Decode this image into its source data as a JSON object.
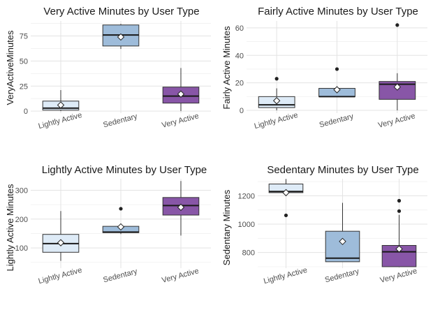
{
  "chart_data": [
    {
      "type": "box",
      "title": "Very Active Minutes  by User Type",
      "xlabel": "",
      "ylabel": "VeryActiveMinutes",
      "categories": [
        "Lightly Active",
        "Sedentary",
        "Very Active"
      ],
      "ylim": [
        -2,
        90
      ],
      "yticks": [
        0,
        25,
        50,
        75
      ],
      "boxes": [
        {
          "category": "Lightly Active",
          "whisker_low": 0,
          "q1": 1,
          "median": 3,
          "q3": 10,
          "whisker_high": 21,
          "mean": 6,
          "outliers": []
        },
        {
          "category": "Sedentary",
          "whisker_low": 62,
          "q1": 65,
          "median": 76,
          "q3": 86,
          "whisker_high": 87,
          "mean": 74,
          "outliers": []
        },
        {
          "category": "Very Active",
          "whisker_low": 0,
          "q1": 8,
          "median": 15,
          "q3": 24,
          "whisker_high": 43,
          "mean": 17,
          "outliers": []
        }
      ],
      "colors": [
        "#deebf7",
        "#9ebcda",
        "#8856a7"
      ],
      "grid": true
    },
    {
      "type": "box",
      "title": "Fairly Active Minutes by User Type",
      "xlabel": "",
      "ylabel": "Fairly Active Minutes",
      "categories": [
        "Lightly Active",
        "Sedentary",
        "Very Active"
      ],
      "ylim": [
        -2,
        65
      ],
      "yticks": [
        0,
        20,
        40,
        60
      ],
      "boxes": [
        {
          "category": "Lightly Active",
          "whisker_low": 0,
          "q1": 2,
          "median": 4,
          "q3": 10,
          "whisker_high": 16,
          "mean": 7,
          "outliers": [
            23
          ]
        },
        {
          "category": "Sedentary",
          "whisker_low": 10,
          "q1": 10,
          "median": 10,
          "q3": 16,
          "whisker_high": 16,
          "mean": 15,
          "outliers": [
            30
          ]
        },
        {
          "category": "Very Active",
          "whisker_low": 0,
          "q1": 8,
          "median": 19,
          "q3": 21,
          "whisker_high": 27,
          "mean": 17,
          "outliers": [
            62
          ]
        }
      ],
      "colors": [
        "#deebf7",
        "#9ebcda",
        "#8856a7"
      ],
      "grid": true
    },
    {
      "type": "box",
      "title": "Lightly Active Minutes by User Type",
      "xlabel": "",
      "ylabel": "Lightly Active Minutes",
      "categories": [
        "Lightly Active",
        "Sedentary",
        "Very Active"
      ],
      "ylim": [
        30,
        340
      ],
      "yticks": [
        100,
        200,
        300
      ],
      "boxes": [
        {
          "category": "Lightly Active",
          "whisker_low": 55,
          "q1": 85,
          "median": 115,
          "q3": 147,
          "whisker_high": 228,
          "mean": 118,
          "outliers": []
        },
        {
          "category": "Sedentary",
          "whisker_low": 148,
          "q1": 153,
          "median": 155,
          "q3": 175,
          "whisker_high": 176,
          "mean": 173,
          "outliers": [
            236
          ]
        },
        {
          "category": "Very Active",
          "whisker_low": 143,
          "q1": 214,
          "median": 247,
          "q3": 275,
          "whisker_high": 332,
          "mean": 241,
          "outliers": []
        }
      ],
      "colors": [
        "#deebf7",
        "#9ebcda",
        "#8856a7"
      ],
      "grid": true
    },
    {
      "type": "box",
      "title": "Sedentary Minutes by User Type",
      "xlabel": "",
      "ylabel": "Sedentary Minutes",
      "categories": [
        "Lightly Active",
        "Sedentary",
        "Very Active"
      ],
      "ylim": [
        690,
        1320
      ],
      "yticks": [
        800,
        1000,
        1200
      ],
      "boxes": [
        {
          "category": "Lightly Active",
          "whisker_low": 1220,
          "q1": 1222,
          "median": 1230,
          "q3": 1283,
          "whisker_high": 1318,
          "mean": 1222,
          "outliers": [
            1062
          ]
        },
        {
          "category": "Sedentary",
          "whisker_low": 735,
          "q1": 735,
          "median": 760,
          "q3": 950,
          "whisker_high": 1150,
          "mean": 878,
          "outliers": []
        },
        {
          "category": "Very Active",
          "whisker_low": 700,
          "q1": 700,
          "median": 805,
          "q3": 850,
          "whisker_high": 1065,
          "mean": 825,
          "outliers": [
            1092,
            1165
          ]
        }
      ],
      "colors": [
        "#deebf7",
        "#9ebcda",
        "#8856a7"
      ],
      "grid": true
    }
  ]
}
